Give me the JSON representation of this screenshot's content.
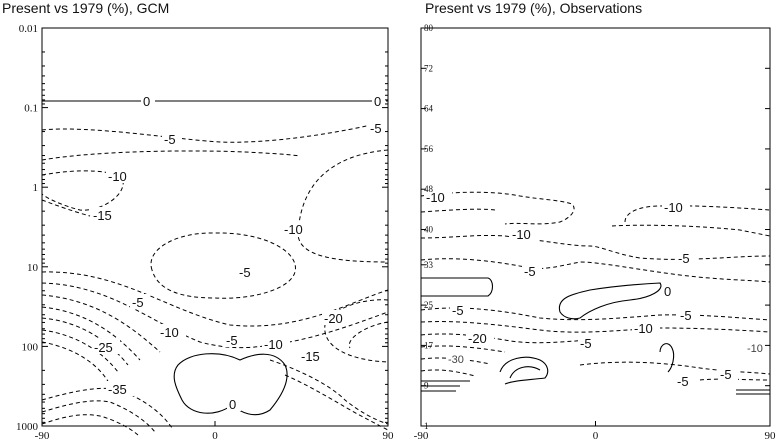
{
  "chart_data": [
    {
      "type": "contour",
      "title": "Present vs 1979 (%), GCM",
      "x_ticks": [
        "-90",
        "0",
        "90"
      ],
      "xlim": [
        -90,
        90
      ],
      "y_scale": "log",
      "y_inverted": true,
      "ylim": [
        1000,
        0.01
      ],
      "y_ticks": [
        "0.01",
        "0.1",
        "1",
        "10",
        "100",
        "1000"
      ],
      "contour_levels": [
        "0",
        "-5",
        "-10",
        "-15",
        "-20",
        "-25",
        "-35"
      ]
    },
    {
      "type": "contour",
      "title": "Present vs 1979 (%), Observations",
      "x_ticks": [
        "-90",
        "0",
        "90"
      ],
      "xlim": [
        -90,
        90
      ],
      "y_scale": "linear",
      "ylim": [
        1,
        80
      ],
      "y_ticks": [
        "1",
        "9",
        "17",
        "25",
        "33",
        "40",
        "48",
        "56",
        "64",
        "72",
        "80"
      ],
      "contour_levels": [
        "0",
        "-5",
        "-10",
        "-20",
        "-30"
      ]
    }
  ]
}
